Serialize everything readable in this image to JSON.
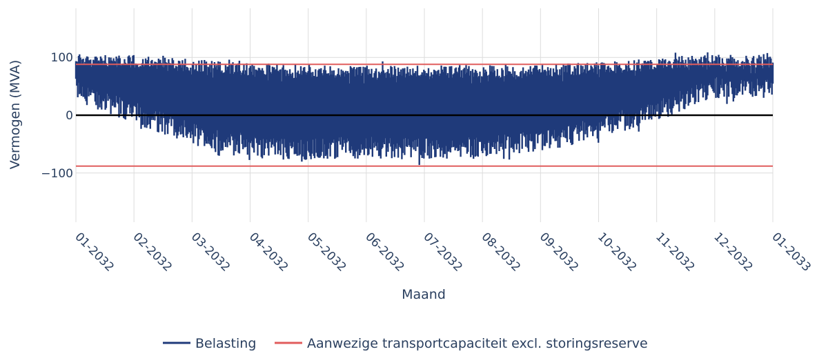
{
  "chart_data": {
    "type": "line",
    "title": "",
    "xlabel": "Maand",
    "ylabel": "Vermogen (MVA)",
    "x_tick_labels": [
      "01-2032",
      "02-2032",
      "03-2032",
      "04-2032",
      "05-2032",
      "06-2032",
      "07-2032",
      "08-2032",
      "09-2032",
      "10-2032",
      "11-2032",
      "12-2032",
      "01-2033"
    ],
    "y_ticks": [
      -100,
      0,
      100
    ],
    "y_tick_labels": [
      "−100",
      "0",
      "100"
    ],
    "ylim": [
      -185,
      185
    ],
    "xlim": [
      "2032-01-01",
      "2033-01-01"
    ],
    "grid": true,
    "legend_position": "bottom-center",
    "series": [
      {
        "name": "Belasting",
        "color": "#1f3a7a",
        "kind": "band",
        "monthly_envelope": {
          "months": [
            "01-2032",
            "02-2032",
            "03-2032",
            "04-2032",
            "05-2032",
            "06-2032",
            "07-2032",
            "08-2032",
            "09-2032",
            "10-2032",
            "11-2032",
            "12-2032",
            "01-2033"
          ],
          "max": [
            108,
            104,
            97,
            90,
            88,
            86,
            86,
            87,
            88,
            92,
            100,
            106,
            102
          ],
          "min": [
            25,
            -15,
            -50,
            -72,
            -78,
            -74,
            -78,
            -74,
            -65,
            -40,
            -12,
            28,
            25
          ]
        }
      },
      {
        "name": "Aanwezige transportcapaciteit excl. storingsreserve",
        "color": "#e05c5c",
        "kind": "hline",
        "values": [
          88,
          -88
        ]
      }
    ],
    "zero_line": {
      "value": 0,
      "color": "#000000"
    }
  }
}
